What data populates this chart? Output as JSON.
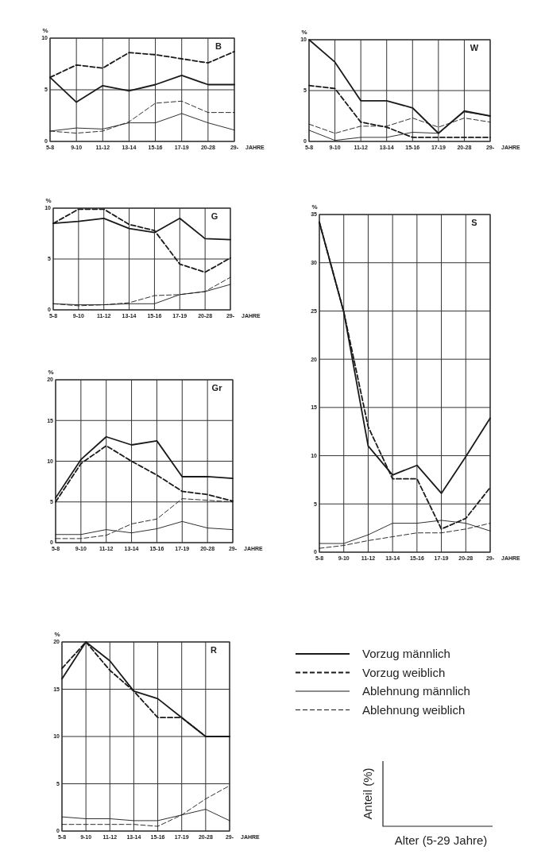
{
  "chart_data": [
    {
      "type": "line",
      "title": "B",
      "xlabel": "JAHRE",
      "ylabel": "%",
      "categories": [
        "5-8",
        "9-10",
        "11-12",
        "13-14",
        "15-16",
        "17-19",
        "20-28",
        "29-"
      ],
      "ylim": [
        0,
        10
      ],
      "yticks": [
        0,
        5,
        10
      ],
      "grid": true,
      "series": [
        {
          "color": "#1a1a1a",
          "line_style": "solid",
          "values": [
            6.2,
            3.8,
            5.4,
            4.9,
            5.5,
            6.4,
            5.5,
            5.5
          ]
        },
        {
          "color": "#1a1a1a",
          "line_style": "dashed",
          "values": [
            6.2,
            7.4,
            7.1,
            8.6,
            8.4,
            8.0,
            7.6,
            8.7
          ]
        },
        {
          "color": "#1a1a1a",
          "line_style": "solid",
          "values": [
            1.0,
            1.3,
            1.2,
            1.8,
            1.8,
            2.7,
            1.8,
            1.1
          ]
        },
        {
          "color": "#1a1a1a",
          "line_style": "dashed",
          "values": [
            1.0,
            0.8,
            1.0,
            1.9,
            3.7,
            3.9,
            2.8,
            2.8
          ]
        }
      ]
    },
    {
      "type": "line",
      "title": "W",
      "xlabel": "JAHRE",
      "ylabel": "%",
      "categories": [
        "5-8",
        "9-10",
        "11-12",
        "13-14",
        "15-16",
        "17-19",
        "20-28",
        "29-"
      ],
      "ylim": [
        0,
        10
      ],
      "yticks": [
        0,
        5,
        10
      ],
      "grid": true,
      "series": [
        {
          "color": "#1a1a1a",
          "line_style": "solid",
          "values": [
            10,
            7.8,
            4.0,
            4.0,
            3.3,
            0.8,
            3.0,
            2.5
          ]
        },
        {
          "color": "#1a1a1a",
          "line_style": "dashed",
          "values": [
            5.5,
            5.2,
            1.9,
            1.4,
            0.4,
            0.4,
            0.4,
            0.4
          ]
        },
        {
          "color": "#1a1a1a",
          "line_style": "solid",
          "values": [
            1.1,
            0.1,
            0.4,
            0.4,
            0.9,
            0.8,
            2.9,
            2.5
          ]
        },
        {
          "color": "#1a1a1a",
          "line_style": "dashed",
          "values": [
            1.7,
            0.8,
            1.5,
            1.5,
            2.3,
            1.4,
            2.3,
            1.9
          ]
        }
      ]
    },
    {
      "type": "line",
      "title": "G",
      "xlabel": "JAHRE",
      "ylabel": "%",
      "categories": [
        "5-8",
        "9-10",
        "11-12",
        "13-14",
        "15-16",
        "17-19",
        "20-28",
        "29-"
      ],
      "ylim": [
        0,
        10
      ],
      "yticks": [
        0,
        5,
        10
      ],
      "grid": true,
      "series": [
        {
          "color": "#1a1a1a",
          "line_style": "solid",
          "values": [
            8.5,
            8.7,
            9.0,
            8.0,
            7.6,
            9.0,
            7.0,
            6.9
          ]
        },
        {
          "color": "#1a1a1a",
          "line_style": "dashed",
          "values": [
            8.5,
            9.9,
            9.9,
            8.4,
            7.8,
            4.5,
            3.7,
            5.1
          ]
        },
        {
          "color": "#1a1a1a",
          "line_style": "solid",
          "values": [
            0.6,
            0.5,
            0.5,
            0.6,
            0.6,
            1.5,
            1.8,
            2.5
          ]
        },
        {
          "color": "#1a1a1a",
          "line_style": "dashed",
          "values": [
            0.6,
            0.4,
            0.5,
            0.7,
            1.4,
            1.5,
            1.8,
            3.2
          ]
        }
      ]
    },
    {
      "type": "line",
      "title": "S",
      "xlabel": "JAHRE",
      "ylabel": "%",
      "categories": [
        "5-8",
        "9-10",
        "11-12",
        "13-14",
        "15-16",
        "17-19",
        "20-28",
        "29-"
      ],
      "ylim": [
        0,
        35
      ],
      "yticks": [
        0,
        5,
        10,
        15,
        20,
        25,
        30,
        35
      ],
      "grid": true,
      "series": [
        {
          "color": "#1a1a1a",
          "line_style": "solid",
          "values": [
            34.2,
            24.9,
            11.0,
            8.0,
            9.0,
            6.1,
            9.9,
            13.9
          ]
        },
        {
          "color": "#1a1a1a",
          "line_style": "dashed",
          "values": [
            34.2,
            24.9,
            13.0,
            7.6,
            7.6,
            2.4,
            3.5,
            6.7
          ]
        },
        {
          "color": "#1a1a1a",
          "line_style": "solid",
          "values": [
            0.9,
            0.9,
            1.8,
            3.0,
            3.0,
            3.3,
            3.0,
            2.2
          ]
        },
        {
          "color": "#1a1a1a",
          "line_style": "dashed",
          "values": [
            0.4,
            0.7,
            1.2,
            1.6,
            2.0,
            2.0,
            2.4,
            3.0
          ]
        }
      ]
    },
    {
      "type": "line",
      "title": "Gr",
      "xlabel": "JAHRE",
      "ylabel": "%",
      "categories": [
        "5-8",
        "9-10",
        "11-12",
        "13-14",
        "15-16",
        "17-19",
        "20-28",
        "29-"
      ],
      "ylim": [
        0,
        20
      ],
      "yticks": [
        0,
        5,
        10,
        15,
        20
      ],
      "grid": true,
      "series": [
        {
          "color": "#1a1a1a",
          "line_style": "solid",
          "values": [
            5.5,
            10.2,
            13.0,
            12.0,
            12.5,
            8.1,
            8.1,
            7.9
          ]
        },
        {
          "color": "#1a1a1a",
          "line_style": "dashed",
          "values": [
            5.0,
            9.7,
            11.9,
            10.0,
            8.3,
            6.3,
            5.9,
            5.1
          ]
        },
        {
          "color": "#1a1a1a",
          "line_style": "solid",
          "values": [
            1.0,
            1.0,
            1.6,
            1.2,
            1.7,
            2.6,
            1.8,
            1.6
          ]
        },
        {
          "color": "#1a1a1a",
          "line_style": "dashed",
          "values": [
            0.5,
            0.5,
            0.9,
            2.3,
            2.9,
            5.4,
            5.2,
            5.0
          ]
        }
      ]
    },
    {
      "type": "line",
      "title": "R",
      "xlabel": "JAHRE",
      "ylabel": "%",
      "categories": [
        "5-8",
        "9-10",
        "11-12",
        "13-14",
        "15-16",
        "17-19",
        "20-28",
        "29-"
      ],
      "ylim": [
        0,
        20
      ],
      "yticks": [
        0,
        5,
        10,
        15,
        20
      ],
      "grid": true,
      "legend": "right",
      "annotations": [
        "Anteil (%)",
        "Alter (5-29 Jahre)"
      ],
      "series": [
        {
          "name": "Vorzug männlich",
          "color": "#1a1a1a",
          "line_style": "solid",
          "values": [
            16.1,
            20,
            18.0,
            14.8,
            14.0,
            12.0,
            10.0,
            10.0
          ]
        },
        {
          "name": "Vorzug weiblich",
          "color": "#1a1a1a",
          "line_style": "dashed",
          "values": [
            17.2,
            20,
            17.0,
            14.8,
            12.0,
            12.0,
            10.0,
            10.0
          ]
        },
        {
          "name": "Ablehnung männlich",
          "color": "#1a1a1a",
          "line_style": "solid",
          "values": [
            1.5,
            1.3,
            1.3,
            1.1,
            1.1,
            1.7,
            2.3,
            1.1
          ]
        },
        {
          "name": "Ablehnung weiblich",
          "color": "#1a1a1a",
          "line_style": "dashed",
          "values": [
            0.7,
            0.7,
            0.7,
            0.7,
            0.5,
            1.7,
            3.4,
            4.8
          ]
        }
      ]
    }
  ]
}
